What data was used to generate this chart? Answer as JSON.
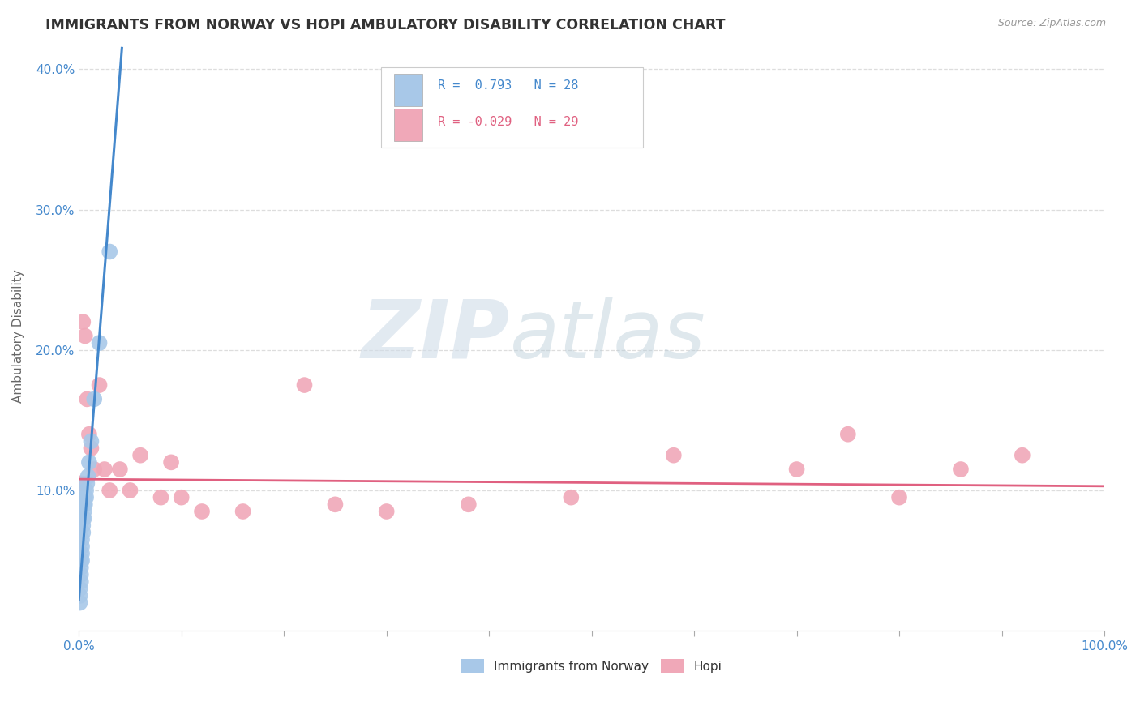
{
  "title": "IMMIGRANTS FROM NORWAY VS HOPI AMBULATORY DISABILITY CORRELATION CHART",
  "source": "Source: ZipAtlas.com",
  "ylabel": "Ambulatory Disability",
  "xlim": [
    0.0,
    1.0
  ],
  "ylim": [
    0.0,
    0.42
  ],
  "norway_R": 0.793,
  "norway_N": 28,
  "hopi_R": -0.029,
  "hopi_N": 29,
  "norway_color": "#a8c8e8",
  "hopi_color": "#f0a8b8",
  "norway_line_color": "#4488cc",
  "hopi_line_color": "#e06080",
  "watermark_zip": "ZIP",
  "watermark_atlas": "atlas",
  "grid_color": "#dddddd",
  "norway_x": [
    0.001,
    0.001,
    0.001,
    0.002,
    0.002,
    0.002,
    0.002,
    0.003,
    0.003,
    0.003,
    0.003,
    0.004,
    0.004,
    0.004,
    0.005,
    0.005,
    0.005,
    0.006,
    0.006,
    0.007,
    0.007,
    0.008,
    0.009,
    0.01,
    0.012,
    0.015,
    0.02,
    0.03
  ],
  "norway_y": [
    0.02,
    0.025,
    0.03,
    0.035,
    0.04,
    0.045,
    0.05,
    0.05,
    0.055,
    0.06,
    0.065,
    0.07,
    0.075,
    0.08,
    0.08,
    0.085,
    0.09,
    0.09,
    0.095,
    0.095,
    0.1,
    0.105,
    0.11,
    0.12,
    0.135,
    0.165,
    0.205,
    0.27
  ],
  "hopi_x": [
    0.002,
    0.004,
    0.006,
    0.008,
    0.01,
    0.012,
    0.015,
    0.02,
    0.025,
    0.03,
    0.04,
    0.05,
    0.06,
    0.08,
    0.09,
    0.1,
    0.12,
    0.16,
    0.22,
    0.25,
    0.3,
    0.38,
    0.48,
    0.58,
    0.7,
    0.75,
    0.8,
    0.86,
    0.92
  ],
  "hopi_y": [
    0.105,
    0.22,
    0.21,
    0.165,
    0.14,
    0.13,
    0.115,
    0.175,
    0.115,
    0.1,
    0.115,
    0.1,
    0.125,
    0.095,
    0.12,
    0.095,
    0.085,
    0.085,
    0.175,
    0.09,
    0.085,
    0.09,
    0.095,
    0.125,
    0.115,
    0.14,
    0.095,
    0.115,
    0.125
  ],
  "norway_line_x": [
    0.0,
    0.042
  ],
  "norway_line_y": [
    0.022,
    0.415
  ],
  "hopi_line_x": [
    0.0,
    1.0
  ],
  "hopi_line_y": [
    0.108,
    0.103
  ],
  "tick_color": "#4488cc",
  "label_color": "#666666"
}
